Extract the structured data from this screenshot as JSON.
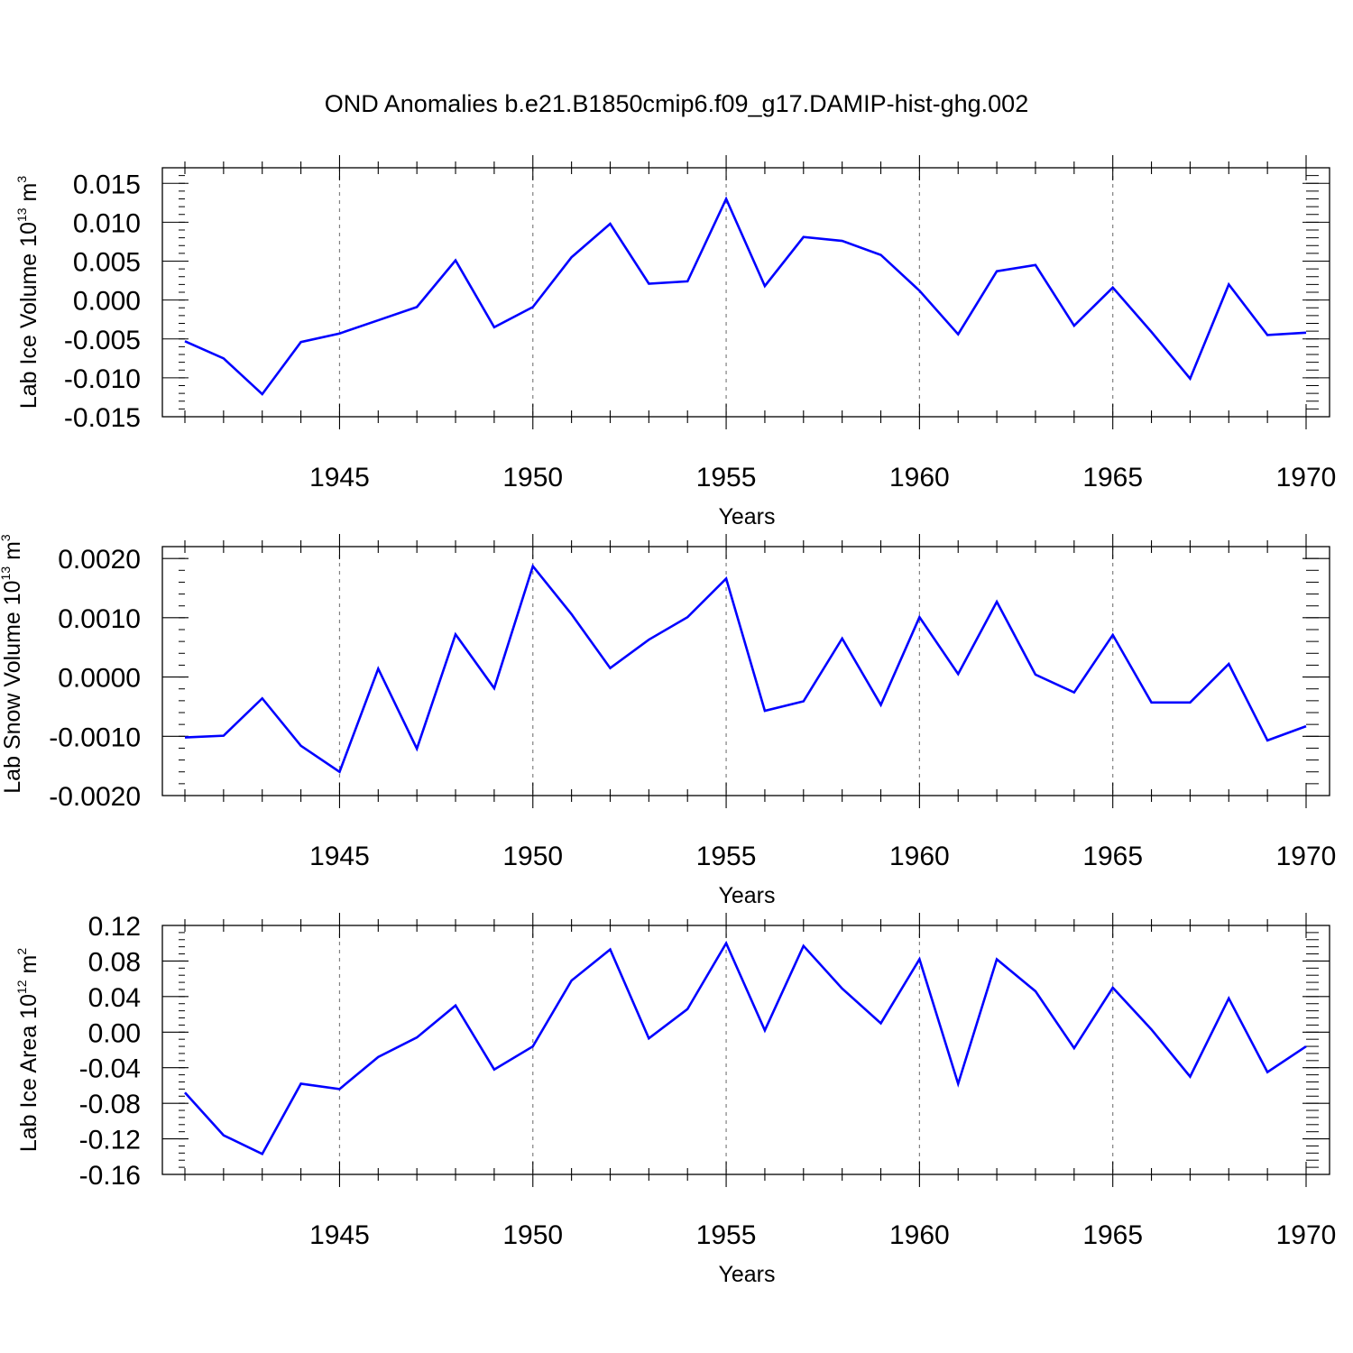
{
  "figure": {
    "title": "OND Anomalies b.e21.B1850cmip6.f09_g17.DAMIP-hist-ghg.002"
  },
  "chart_data": [
    {
      "type": "line",
      "ylabel": {
        "prefix": "Lab Ice Volume 10",
        "exp": "13",
        "unit": " m",
        "unit_exp": "3"
      },
      "xlabel": "Years",
      "xlim": [
        1941,
        1970
      ],
      "ylim": [
        -0.015,
        0.017
      ],
      "yticks": [
        -0.015,
        -0.01,
        -0.005,
        0.0,
        0.005,
        0.01,
        0.015
      ],
      "ytick_labels": [
        "-0.015",
        "-0.010",
        "-0.005",
        "0.000",
        "0.005",
        "0.010",
        "0.015"
      ],
      "xticks": [
        1945,
        1950,
        1955,
        1960,
        1965,
        1970
      ],
      "xtick_labels": [
        "1945",
        "1950",
        "1955",
        "1960",
        "1965",
        "1970"
      ],
      "grid": "vertical-dashed",
      "color": "#0000ff",
      "x": [
        1941,
        1942,
        1943,
        1944,
        1945,
        1946,
        1947,
        1948,
        1949,
        1950,
        1951,
        1952,
        1953,
        1954,
        1955,
        1956,
        1957,
        1958,
        1959,
        1960,
        1961,
        1962,
        1963,
        1964,
        1965,
        1966,
        1967,
        1968,
        1969,
        1970
      ],
      "y": [
        -0.0053,
        -0.0075,
        -0.0121,
        -0.0054,
        -0.0043,
        -0.0026,
        -0.0009,
        0.0051,
        -0.0035,
        -0.0009,
        0.0055,
        0.0098,
        0.0021,
        0.0024,
        0.013,
        0.0018,
        0.0081,
        0.0076,
        0.0058,
        0.0012,
        -0.0044,
        0.0037,
        0.0045,
        -0.0033,
        0.0016,
        -0.0041,
        -0.0101,
        0.002,
        -0.0045,
        -0.0042
      ]
    },
    {
      "type": "line",
      "ylabel": {
        "prefix": "Lab Snow Volume 10",
        "exp": "13",
        "unit": " m",
        "unit_exp": "3"
      },
      "xlabel": "Years",
      "xlim": [
        1941,
        1970
      ],
      "ylim": [
        -0.002,
        0.0022
      ],
      "yticks": [
        -0.002,
        -0.001,
        0.0,
        0.001,
        0.002
      ],
      "ytick_labels": [
        "-0.0020",
        "-0.0010",
        "0.0000",
        "0.0010",
        "0.0020"
      ],
      "xticks": [
        1945,
        1950,
        1955,
        1960,
        1965,
        1970
      ],
      "xtick_labels": [
        "1945",
        "1950",
        "1955",
        "1960",
        "1965",
        "1970"
      ],
      "grid": "vertical-dashed",
      "color": "#0000ff",
      "x": [
        1941,
        1942,
        1943,
        1944,
        1945,
        1946,
        1947,
        1948,
        1949,
        1950,
        1951,
        1952,
        1953,
        1954,
        1955,
        1956,
        1957,
        1958,
        1959,
        1960,
        1961,
        1962,
        1963,
        1964,
        1965,
        1966,
        1967,
        1968,
        1969,
        1970
      ],
      "y": [
        -0.00102,
        -0.00099,
        -0.00036,
        -0.00116,
        -0.0016,
        0.00014,
        -0.00121,
        0.00072,
        -0.00019,
        0.00187,
        0.00106,
        0.00015,
        0.00063,
        0.00101,
        0.00166,
        -0.00057,
        -0.00041,
        0.00065,
        -0.00047,
        0.00101,
        5e-05,
        0.00127,
        4e-05,
        -0.00026,
        0.00071,
        -0.00043,
        -0.00043,
        0.00022,
        -0.00107,
        -0.00083
      ]
    },
    {
      "type": "line",
      "ylabel": {
        "prefix": "Lab Ice Area 10",
        "exp": "12",
        "unit": " m",
        "unit_exp": "2"
      },
      "xlabel": "Years",
      "xlim": [
        1941,
        1970
      ],
      "ylim": [
        -0.16,
        0.12
      ],
      "yticks": [
        -0.16,
        -0.12,
        -0.08,
        -0.04,
        0.0,
        0.04,
        0.08,
        0.12
      ],
      "ytick_labels": [
        "-0.16",
        "-0.12",
        "-0.08",
        "-0.04",
        "0.00",
        "0.04",
        "0.08",
        "0.12"
      ],
      "xticks": [
        1945,
        1950,
        1955,
        1960,
        1965,
        1970
      ],
      "xtick_labels": [
        "1945",
        "1950",
        "1955",
        "1960",
        "1965",
        "1970"
      ],
      "grid": "vertical-dashed",
      "color": "#0000ff",
      "x": [
        1941,
        1942,
        1943,
        1944,
        1945,
        1946,
        1947,
        1948,
        1949,
        1950,
        1951,
        1952,
        1953,
        1954,
        1955,
        1956,
        1957,
        1958,
        1959,
        1960,
        1961,
        1962,
        1963,
        1964,
        1965,
        1966,
        1967,
        1968,
        1969,
        1970
      ],
      "y": [
        -0.068,
        -0.116,
        -0.137,
        -0.058,
        -0.064,
        -0.028,
        -0.006,
        0.03,
        -0.042,
        -0.016,
        0.058,
        0.093,
        -0.007,
        0.026,
        0.1,
        0.002,
        0.097,
        0.049,
        0.01,
        0.082,
        -0.058,
        0.082,
        0.046,
        -0.018,
        0.05,
        0.003,
        -0.05,
        0.038,
        -0.045,
        -0.016
      ]
    }
  ]
}
